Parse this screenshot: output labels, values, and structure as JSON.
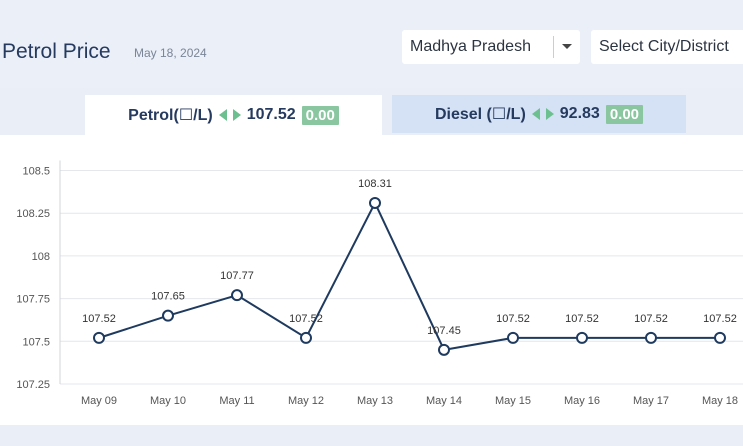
{
  "header": {
    "title": "Petrol Price",
    "date": "May 18, 2024",
    "state_select": {
      "value": "Madhya Pradesh"
    },
    "city_select": {
      "value": "Select City/District"
    }
  },
  "tabs": [
    {
      "label": "Petrol(☐/L)",
      "price": "107.52",
      "change": "0.00",
      "active": true
    },
    {
      "label": "Diesel (☐/L)",
      "price": "92.83",
      "change": "0.00",
      "active": false
    }
  ],
  "colors": {
    "line": "#1f3a5f",
    "badge": "#8ac6a0",
    "arrow": "#6cc08f",
    "grid": "#e4e7ec"
  },
  "chart_data": {
    "type": "line",
    "categories": [
      "May 09",
      "May 10",
      "May 11",
      "May 12",
      "May 13",
      "May 14",
      "May 15",
      "May 16",
      "May 17",
      "May 18"
    ],
    "series": [
      {
        "values": [
          107.52,
          107.65,
          107.77,
          107.52,
          108.31,
          107.45,
          107.52,
          107.52,
          107.52,
          107.52
        ]
      }
    ],
    "data_labels": [
      "107.52",
      "107.65",
      "107.77",
      "107.52",
      "108.31",
      "107.45",
      "107.52",
      "107.52",
      "107.52",
      "107.52"
    ],
    "y_ticks": [
      "107.25",
      "107.5",
      "107.75",
      "108",
      "108.25",
      "108.5"
    ],
    "y_tick_values": [
      107.25,
      107.5,
      107.75,
      108,
      108.25,
      108.5
    ],
    "ylim": [
      107.25,
      108.5
    ],
    "grid": true
  }
}
